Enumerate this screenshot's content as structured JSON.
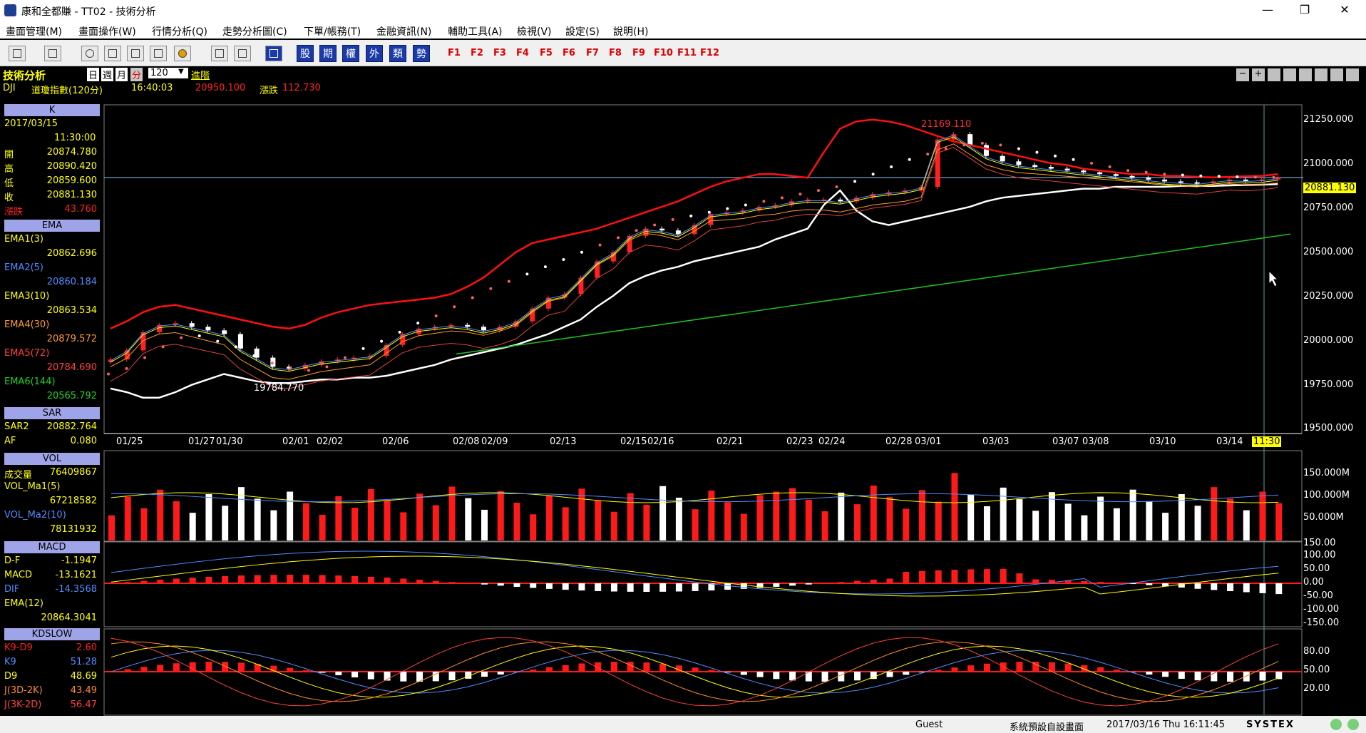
{
  "window": {
    "title": "康和全都賺 - TT02 - 技術分析",
    "buttons": [
      "—",
      "❐",
      "✕"
    ]
  },
  "menu": [
    "畫面管理(M)",
    "畫面操作(W)",
    "行情分析(Q)",
    "走勢分析圖(C)",
    "下單/帳務(T)",
    "金融資訊(N)",
    "輔助工具(A)",
    "檢視(V)",
    "設定(S)",
    "說明(H)"
  ],
  "toolbar": {
    "cjk_buttons": [
      "股",
      "期",
      "權",
      "外",
      "類",
      "勢"
    ],
    "fkeys": [
      "F1",
      "F2",
      "F3",
      "F4",
      "F5",
      "F6",
      "F7",
      "F8",
      "F9",
      "F10",
      "F11",
      "F12"
    ]
  },
  "header": {
    "title": "技術分析",
    "period_tabs": [
      "日",
      "週",
      "月",
      "分"
    ],
    "active_period": "分",
    "count_select": "120",
    "advanced": "進階",
    "symbol": "DJI",
    "name": "道瓊指數(120分)",
    "time": "16:40:03",
    "price": "20950.100",
    "change_label": "漲跌",
    "change": "112.730"
  },
  "k_panel": {
    "header": "K",
    "date": "2017/03/15",
    "time": "11:30:00",
    "rows": [
      {
        "label": "開",
        "value": "20874.780",
        "color": "#ffff00"
      },
      {
        "label": "高",
        "value": "20890.420",
        "color": "#ffff00"
      },
      {
        "label": "低",
        "value": "20859.600",
        "color": "#ffff00"
      },
      {
        "label": "收",
        "value": "20881.130",
        "color": "#ffff00"
      },
      {
        "label": "漲跌",
        "value": "43.760",
        "color": "#ff2020"
      }
    ]
  },
  "ema_panel": {
    "header": "EMA",
    "rows": [
      {
        "label": "EMA1(3)",
        "value": "20862.696",
        "color": "#ffff00"
      },
      {
        "label": "EMA2(5)",
        "value": "20860.184",
        "color": "#4f8cff"
      },
      {
        "label": "EMA3(10)",
        "value": "20863.534",
        "color": "#ffff00"
      },
      {
        "label": "EMA4(30)",
        "value": "20879.572",
        "color": "#ff9a2a"
      },
      {
        "label": "EMA5(72)",
        "value": "20784.690",
        "color": "#ff4040"
      },
      {
        "label": "EMA6(144)",
        "value": "20565.792",
        "color": "#20d020"
      }
    ]
  },
  "sar_panel": {
    "header": "SAR",
    "rows": [
      {
        "label": "SAR2",
        "value": "20882.764",
        "color": "#ffff00"
      },
      {
        "label": "AF",
        "value": "0.080",
        "color": "#ffff00"
      }
    ]
  },
  "vol_panel": {
    "header": "VOL",
    "rows": [
      {
        "label": "成交量",
        "value": "76409867",
        "color": "#ffff00"
      },
      {
        "label": "VOL_Ma1(5)",
        "value": "",
        "color": "#ffff00"
      },
      {
        "label": "",
        "value": "67218582",
        "color": "#ffff00"
      },
      {
        "label": "VOL_Ma2(10)",
        "value": "",
        "color": "#4f8cff"
      },
      {
        "label": "",
        "value": "78131932",
        "color": "#ffff00"
      }
    ]
  },
  "macd_panel": {
    "header": "MACD",
    "rows": [
      {
        "label": "D-F",
        "value": "-1.1947",
        "color": "#ffff00"
      },
      {
        "label": "MACD",
        "value": "-13.1621",
        "color": "#ffff00"
      },
      {
        "label": "DIF",
        "value": "-14.3568",
        "color": "#4f8cff"
      },
      {
        "label": "EMA(12)",
        "value": "",
        "color": "#ffff00"
      },
      {
        "label": "",
        "value": "20864.3041",
        "color": "#ffff00"
      }
    ]
  },
  "kd_panel": {
    "header": "KDSLOW",
    "rows": [
      {
        "label": "K9-D9",
        "value": "2.60",
        "color": "#ff2020"
      },
      {
        "label": "K9",
        "value": "51.28",
        "color": "#4f8cff"
      },
      {
        "label": "D9",
        "value": "48.69",
        "color": "#ffff00"
      },
      {
        "label": "J(3D-2K)",
        "value": "43.49",
        "color": "#ff8a2a"
      },
      {
        "label": "J(3K-2D)",
        "value": "56.47",
        "color": "#ff4040"
      }
    ]
  },
  "chart_data": [
    {
      "type": "candlestick",
      "name": "K",
      "x_ticks": [
        "01/25",
        "01/27",
        "01/30",
        "02/01",
        "02/02",
        "02/06",
        "02/08",
        "02/09",
        "02/13",
        "02/15",
        "02/16",
        "02/21",
        "02/23",
        "02/24",
        "02/28",
        "03/01",
        "03/03",
        "03/07",
        "03/08",
        "03/10",
        "03/14"
      ],
      "cursor_time": "11:30",
      "y_ticks": [
        "21250.000",
        "21000.000",
        "20750.000",
        "20500.000",
        "20250.000",
        "20000.000",
        "19750.000",
        "19500.000"
      ],
      "ylim": [
        19500,
        21250
      ],
      "last_price": "20881.130",
      "high_label": "21169.110",
      "low_label": "19784.770",
      "close": [
        19880,
        19930,
        20030,
        20070,
        20080,
        20060,
        20040,
        20020,
        19940,
        19890,
        19840,
        19830,
        19850,
        19870,
        19880,
        19890,
        19900,
        19960,
        20020,
        20050,
        20060,
        20070,
        20060,
        20040,
        20060,
        20090,
        20160,
        20220,
        20240,
        20330,
        20420,
        20470,
        20560,
        20600,
        20590,
        20570,
        20620,
        20680,
        20690,
        20700,
        20720,
        20730,
        20750,
        20760,
        20760,
        20750,
        20770,
        20790,
        20800,
        20810,
        20830,
        21090,
        21120,
        21060,
        21000,
        20970,
        20950,
        20940,
        20930,
        20920,
        20910,
        20900,
        20890,
        20880,
        20870,
        20860,
        20855,
        20850,
        20860,
        20870,
        20865,
        20870,
        20881
      ],
      "ema6": [
        [
          19810,
          20570
        ]
      ],
      "sar": [
        19800,
        19830,
        19890,
        19950,
        20000,
        20010,
        19980,
        19950,
        19900,
        19860,
        19830,
        19820,
        19840,
        19890,
        19940,
        19980,
        20030,
        20080,
        20120,
        20170,
        20220,
        20270,
        20310,
        20350,
        20390,
        20430,
        20470,
        20510,
        20550,
        20590,
        20620,
        20650,
        20670,
        20690,
        20710,
        20730,
        20750,
        20770,
        20790,
        20810,
        20830,
        20860,
        20900,
        20940,
        20980,
        21010,
        21040,
        21060,
        21070,
        21060,
        21040,
        21020,
        21000,
        20980,
        20960,
        20940,
        20920,
        20910,
        20900,
        20895,
        20890,
        20888,
        20885,
        20883,
        20882
      ]
    },
    {
      "type": "bar",
      "name": "VOL",
      "y_ticks": [
        "150.000M",
        "100.000M",
        "50.000M"
      ],
      "ylim": [
        0,
        160
      ]
    },
    {
      "type": "bar",
      "name": "MACD",
      "y_ticks": [
        "150.00",
        "100.00",
        "50.00",
        "0.00",
        "-50.00",
        "-100.00",
        "-150.00"
      ],
      "ylim": [
        -150,
        150
      ]
    },
    {
      "type": "line",
      "name": "KDSLOW",
      "y_ticks": [
        "80.00",
        "50.00",
        "20.00"
      ],
      "ylim": [
        0,
        100
      ]
    }
  ],
  "status": {
    "user": "Guest",
    "layout": "系統預設自設畫面",
    "datetime": "2017/03/16 Thu 16:11:45",
    "brand": "SYSTEX"
  }
}
